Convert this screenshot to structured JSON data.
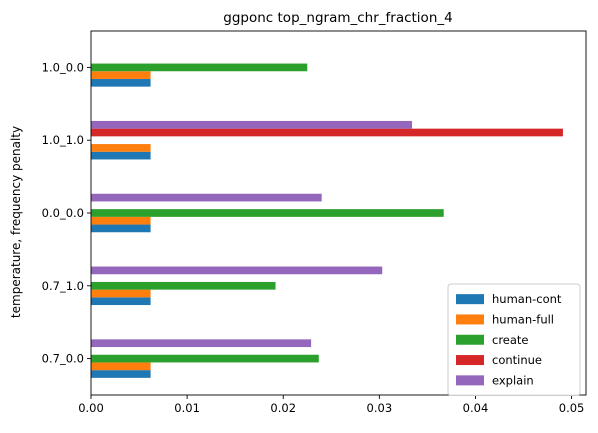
{
  "chart_data": {
    "type": "bar",
    "orientation": "horizontal",
    "title": "ggponc top_ngram_chr_fraction_4",
    "xlabel": "",
    "ylabel": "temperature, frequency penalty",
    "categories": [
      "0.7_0.0",
      "0.7_1.0",
      "0.0_0.0",
      "1.0_1.0",
      "1.0_0.0"
    ],
    "xlim": [
      0,
      0.0515
    ],
    "xticks": [
      0.0,
      0.01,
      0.02,
      0.03,
      0.04,
      0.05
    ],
    "xtick_labels": [
      "0.00",
      "0.01",
      "0.02",
      "0.03",
      "0.04",
      "0.05"
    ],
    "grid": false,
    "legend_position": "lower-right",
    "series": [
      {
        "name": "human-cont",
        "color": "#1f77b4",
        "values": [
          0.0062,
          0.0062,
          0.0062,
          0.0062,
          0.0062
        ]
      },
      {
        "name": "human-full",
        "color": "#ff7f0e",
        "values": [
          0.0062,
          0.0062,
          0.0062,
          0.0062,
          0.0062
        ]
      },
      {
        "name": "create",
        "color": "#2ca02c",
        "values": [
          0.0237,
          0.0192,
          0.0367,
          null,
          0.0225
        ]
      },
      {
        "name": "continue",
        "color": "#d62728",
        "values": [
          null,
          null,
          null,
          0.0491,
          null
        ]
      },
      {
        "name": "explain",
        "color": "#9467bd",
        "values": [
          0.0229,
          0.0303,
          0.024,
          0.0334,
          null
        ]
      }
    ]
  }
}
